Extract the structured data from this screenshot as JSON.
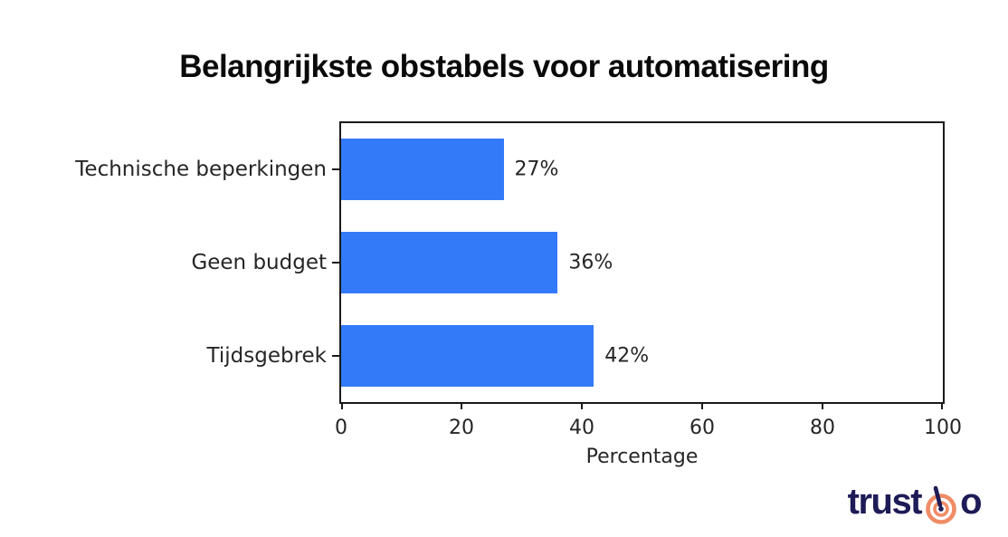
{
  "page": {
    "background": "#ffffff"
  },
  "chart_data": {
    "type": "bar",
    "orientation": "horizontal",
    "title": "Belangrijkste obstabels voor automatisering",
    "categories": [
      "Technische beperkingen",
      "Geen budget",
      "Tijdsgebrek"
    ],
    "values": [
      27,
      36,
      42
    ],
    "value_labels": [
      "27%",
      "36%",
      "42%"
    ],
    "xlabel": "Percentage",
    "xlim": [
      0,
      100
    ],
    "xticks": [
      "0",
      "20",
      "40",
      "60",
      "80",
      "100"
    ],
    "grid": false,
    "legend": "none",
    "bar_color": "#337af8",
    "axis_color": "#1a1a1a",
    "label_color": "#262626"
  },
  "branding": {
    "logo_text_before": "trust",
    "logo_text_after": "o",
    "logo_color": "#1e1b57",
    "logo_accent_color": "#f08c66",
    "bullseye_icon": "bullseye-target-with-needle"
  }
}
